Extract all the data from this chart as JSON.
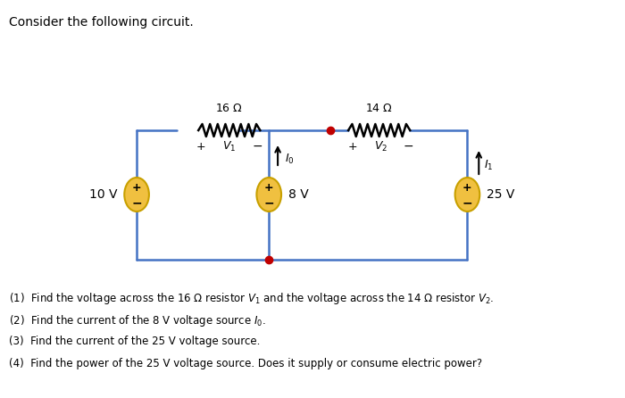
{
  "title": "Consider the following circuit.",
  "background_color": "#ffffff",
  "circuit_color": "#4472c4",
  "wire_color": "#000000",
  "resistor_color": "#000000",
  "source_color_fill": "#f0c040",
  "source_color_border": "#c8a000",
  "node_color": "#c00000",
  "text_color": "#000000",
  "questions": [
    "(1)  Find the voltage across the 16 Ω resistor $V_1$ and the voltage across the 14 Ω resistor $V_2$.",
    "(2)  Find the current of the 8 V voltage source $I_0$.",
    "(3)  Find the current of the 25 V voltage source.",
    "(4)  Find the power of the 25 V voltage source. Does it supply or consume electric power?"
  ]
}
